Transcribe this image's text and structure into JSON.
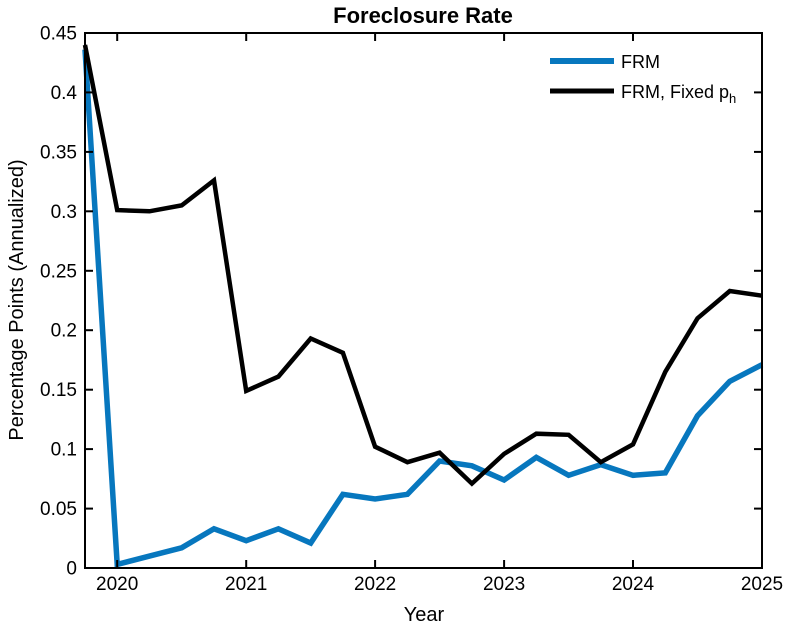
{
  "chart_data": {
    "type": "line",
    "title": "Foreclosure Rate",
    "xlabel": "Year",
    "ylabel": "Percentage Points (Annualized)",
    "xlim": [
      2019.75,
      2025
    ],
    "ylim": [
      0,
      0.45
    ],
    "x_ticks": [
      2020,
      2021,
      2022,
      2023,
      2024,
      2025
    ],
    "x_tick_labels": [
      "2020",
      "2021",
      "2022",
      "2023",
      "2024",
      "2025"
    ],
    "y_ticks": [
      0,
      0.05,
      0.1,
      0.15,
      0.2,
      0.25,
      0.3,
      0.35,
      0.4,
      0.45
    ],
    "y_tick_labels": [
      "0",
      "0.05",
      "0.1",
      "0.15",
      "0.2",
      "0.25",
      "0.3",
      "0.35",
      "0.4",
      "0.45"
    ],
    "grid": false,
    "axis_color": "#000000",
    "legend": {
      "position": "top-right-inside",
      "border": "none"
    },
    "x": [
      2019.75,
      2020.0,
      2020.25,
      2020.5,
      2020.75,
      2021.0,
      2021.25,
      2021.5,
      2021.75,
      2022.0,
      2022.25,
      2022.5,
      2022.75,
      2023.0,
      2023.25,
      2023.5,
      2023.75,
      2024.0,
      2024.25,
      2024.5,
      2024.75,
      2025.0
    ],
    "series": [
      {
        "name": "FRM",
        "color": "#0777be",
        "line_width": 5.5,
        "values": [
          0.436,
          0.003,
          0.01,
          0.017,
          0.033,
          0.023,
          0.033,
          0.021,
          0.062,
          0.058,
          0.062,
          0.09,
          0.086,
          0.074,
          0.093,
          0.078,
          0.087,
          0.078,
          0.08,
          0.128,
          0.157,
          0.171
        ]
      },
      {
        "name": "FRM, Fixed p",
        "name_sub": "h",
        "color": "#000000",
        "line_width": 4.5,
        "values": [
          0.44,
          0.301,
          0.3,
          0.305,
          0.326,
          0.149,
          0.161,
          0.193,
          0.181,
          0.102,
          0.089,
          0.097,
          0.071,
          0.096,
          0.113,
          0.112,
          0.089,
          0.104,
          0.165,
          0.21,
          0.233,
          0.229
        ]
      }
    ]
  }
}
